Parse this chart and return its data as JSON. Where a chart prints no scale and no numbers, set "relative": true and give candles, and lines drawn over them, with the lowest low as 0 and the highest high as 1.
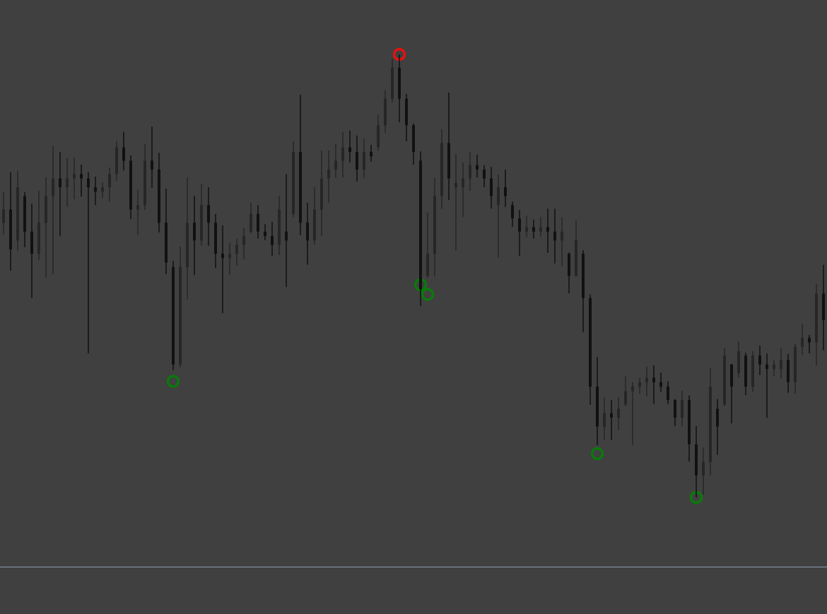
{
  "chart_data": {
    "type": "candlestick",
    "relative": true,
    "tick_labels": false,
    "marker": "circle",
    "categories": [
      null,
      null,
      null,
      null,
      null,
      null,
      null,
      null,
      null,
      null,
      null,
      null,
      null,
      null,
      null,
      null,
      null,
      null,
      null,
      null,
      null,
      null,
      null,
      null,
      null,
      null,
      null,
      null,
      null,
      null,
      null,
      null,
      null,
      null,
      null,
      null,
      null,
      null,
      null,
      null,
      null,
      null,
      null,
      null,
      null,
      null,
      null,
      null,
      null,
      null,
      null,
      null,
      null,
      null,
      null,
      null,
      null,
      null,
      null,
      null,
      null,
      null,
      null,
      null,
      null,
      null,
      null,
      null,
      null,
      null,
      null,
      null,
      null,
      null,
      null,
      null,
      null,
      null,
      null,
      null,
      null,
      null,
      null,
      null,
      null,
      null,
      null,
      null,
      null,
      null,
      null,
      null,
      null,
      null,
      null,
      null,
      null,
      null,
      null,
      null,
      null,
      null,
      null,
      null,
      null,
      null,
      null,
      null,
      null,
      null,
      null,
      null,
      null,
      null,
      null,
      null,
      null
    ],
    "ohlc": [
      [
        0.62,
        0.689,
        0.593,
        0.65
      ],
      [
        0.65,
        0.734,
        0.512,
        0.56
      ],
      [
        0.58,
        0.737,
        0.557,
        0.7
      ],
      [
        0.68,
        0.689,
        0.565,
        0.6
      ],
      [
        0.6,
        0.663,
        0.45,
        0.55
      ],
      [
        0.55,
        0.692,
        0.536,
        0.62
      ],
      [
        0.62,
        0.722,
        0.496,
        0.68
      ],
      [
        0.68,
        0.794,
        0.504,
        0.72
      ],
      [
        0.72,
        0.78,
        0.59,
        0.7
      ],
      [
        0.7,
        0.766,
        0.656,
        0.72
      ],
      [
        0.72,
        0.767,
        0.673,
        0.73
      ],
      [
        0.73,
        0.751,
        0.679,
        0.72
      ],
      [
        0.72,
        0.734,
        0.325,
        0.7
      ],
      [
        0.7,
        0.724,
        0.66,
        0.69
      ],
      [
        0.69,
        0.711,
        0.676,
        0.7
      ],
      [
        0.7,
        0.745,
        0.667,
        0.73
      ],
      [
        0.73,
        0.805,
        0.715,
        0.79
      ],
      [
        0.79,
        0.825,
        0.738,
        0.76
      ],
      [
        0.76,
        0.772,
        0.628,
        0.65
      ],
      [
        0.65,
        0.694,
        0.592,
        0.66
      ],
      [
        0.66,
        0.797,
        0.649,
        0.76
      ],
      [
        0.76,
        0.837,
        0.699,
        0.74
      ],
      [
        0.74,
        0.778,
        0.598,
        0.62
      ],
      [
        0.62,
        0.697,
        0.504,
        0.53
      ],
      [
        0.52,
        0.534,
        0.287,
        0.3
      ],
      [
        0.3,
        0.566,
        0.293,
        0.52
      ],
      [
        0.52,
        0.722,
        0.447,
        0.62
      ],
      [
        0.62,
        0.681,
        0.502,
        0.58
      ],
      [
        0.58,
        0.708,
        0.568,
        0.66
      ],
      [
        0.66,
        0.7,
        0.568,
        0.62
      ],
      [
        0.62,
        0.64,
        0.518,
        0.55
      ],
      [
        0.55,
        0.614,
        0.416,
        0.54
      ],
      [
        0.54,
        0.574,
        0.502,
        0.55
      ],
      [
        0.55,
        0.584,
        0.523,
        0.57
      ],
      [
        0.57,
        0.608,
        0.537,
        0.59
      ],
      [
        0.6,
        0.665,
        0.596,
        0.64
      ],
      [
        0.64,
        0.66,
        0.584,
        0.6
      ],
      [
        0.6,
        0.617,
        0.581,
        0.59
      ],
      [
        0.59,
        0.622,
        0.545,
        0.57
      ],
      [
        0.57,
        0.681,
        0.547,
        0.65
      ],
      [
        0.6,
        0.73,
        0.475,
        0.58
      ],
      [
        0.64,
        0.804,
        0.633,
        0.78
      ],
      [
        0.78,
        0.909,
        0.592,
        0.62
      ],
      [
        0.62,
        0.665,
        0.525,
        0.58
      ],
      [
        0.58,
        0.7,
        0.571,
        0.65
      ],
      [
        0.65,
        0.783,
        0.59,
        0.72
      ],
      [
        0.72,
        0.783,
        0.665,
        0.74
      ],
      [
        0.74,
        0.799,
        0.721,
        0.76
      ],
      [
        0.76,
        0.825,
        0.722,
        0.79
      ],
      [
        0.79,
        0.828,
        0.756,
        0.78
      ],
      [
        0.78,
        0.817,
        0.713,
        0.74
      ],
      [
        0.74,
        0.81,
        0.721,
        0.78
      ],
      [
        0.78,
        0.796,
        0.758,
        0.77
      ],
      [
        0.79,
        0.864,
        0.783,
        0.84
      ],
      [
        0.84,
        0.919,
        0.823,
        0.9
      ],
      [
        0.9,
        0.99,
        0.892,
        0.97
      ],
      [
        0.97,
        1,
        0.847,
        0.9
      ],
      [
        0.9,
        0.911,
        0.804,
        0.84
      ],
      [
        0.84,
        0.844,
        0.751,
        0.78
      ],
      [
        0.76,
        0.781,
        0.432,
        0.47
      ],
      [
        0.5,
        0.643,
        0.496,
        0.55
      ],
      [
        0.55,
        0.721,
        0.499,
        0.68
      ],
      [
        0.68,
        0.831,
        0.651,
        0.8
      ],
      [
        0.8,
        0.914,
        0.671,
        0.72
      ],
      [
        0.7,
        0.775,
        0.558,
        0.71
      ],
      [
        0.7,
        0.756,
        0.633,
        0.72
      ],
      [
        0.72,
        0.78,
        0.692,
        0.75
      ],
      [
        0.75,
        0.774,
        0.722,
        0.74
      ],
      [
        0.74,
        0.75,
        0.7,
        0.72
      ],
      [
        0.72,
        0.746,
        0.652,
        0.68
      ],
      [
        0.66,
        0.729,
        0.541,
        0.7
      ],
      [
        0.7,
        0.74,
        0.656,
        0.68
      ],
      [
        0.66,
        0.668,
        0.611,
        0.63
      ],
      [
        0.63,
        0.649,
        0.545,
        0.6
      ],
      [
        0.6,
        0.636,
        0.587,
        0.61
      ],
      [
        0.61,
        0.627,
        0.584,
        0.6
      ],
      [
        0.6,
        0.633,
        0.589,
        0.61
      ],
      [
        0.61,
        0.652,
        0.552,
        0.6
      ],
      [
        0.6,
        0.652,
        0.528,
        0.58
      ],
      [
        0.58,
        0.632,
        0.522,
        0.6
      ],
      [
        0.55,
        0.553,
        0.461,
        0.5
      ],
      [
        0.5,
        0.625,
        0.498,
        0.58
      ],
      [
        0.55,
        0.558,
        0.373,
        0.45
      ],
      [
        0.45,
        0.458,
        0.209,
        0.25
      ],
      [
        0.25,
        0.317,
        0.118,
        0.16
      ],
      [
        0.16,
        0.225,
        0.129,
        0.19
      ],
      [
        0.19,
        0.22,
        0.129,
        0.18
      ],
      [
        0.18,
        0.226,
        0.152,
        0.2
      ],
      [
        0.21,
        0.273,
        0.206,
        0.24
      ],
      [
        0.24,
        0.26,
        0.118,
        0.25
      ],
      [
        0.25,
        0.27,
        0.234,
        0.26
      ],
      [
        0.26,
        0.295,
        0.228,
        0.27
      ],
      [
        0.27,
        0.298,
        0.211,
        0.26
      ],
      [
        0.26,
        0.282,
        0.238,
        0.25
      ],
      [
        0.25,
        0.262,
        0.211,
        0.22
      ],
      [
        0.22,
        0.222,
        0.161,
        0.18
      ],
      [
        0.18,
        0.241,
        0.161,
        0.22
      ],
      [
        0.22,
        0.23,
        0.081,
        0.12
      ],
      [
        0.12,
        0.161,
        0,
        0.05
      ],
      [
        0.05,
        0.113,
        0.006,
        0.08
      ],
      [
        0.08,
        0.292,
        0.049,
        0.25
      ],
      [
        0.2,
        0.222,
        0.096,
        0.16
      ],
      [
        0.21,
        0.337,
        0.206,
        0.32
      ],
      [
        0.3,
        0.301,
        0.167,
        0.25
      ],
      [
        0.28,
        0.352,
        0.27,
        0.33
      ],
      [
        0.32,
        0.327,
        0.231,
        0.25
      ],
      [
        0.25,
        0.33,
        0.239,
        0.32
      ],
      [
        0.32,
        0.343,
        0.276,
        0.3
      ],
      [
        0.3,
        0.325,
        0.18,
        0.29
      ],
      [
        0.29,
        0.311,
        0.273,
        0.3
      ],
      [
        0.29,
        0.337,
        0.268,
        0.31
      ],
      [
        0.31,
        0.324,
        0.236,
        0.26
      ],
      [
        0.26,
        0.346,
        0.234,
        0.34
      ],
      [
        0.34,
        0.392,
        0.321,
        0.36
      ],
      [
        0.36,
        0.367,
        0.325,
        0.35
      ],
      [
        0.35,
        0.482,
        0.297,
        0.46
      ],
      [
        0.46,
        0.525,
        0.332,
        0.4
      ]
    ],
    "colors": [
      "#262626",
      "#111111",
      "#262626",
      "#111111",
      "#111111",
      "#262626",
      "#262626",
      "#262626",
      "#111111",
      "#262626",
      "#262626",
      "#111111",
      "#111111",
      "#111111",
      "#262626",
      "#262626",
      "#262626",
      "#111111",
      "#111111",
      "#262626",
      "#262626",
      "#111111",
      "#111111",
      "#111111",
      "#111111",
      "#262626",
      "#262626",
      "#111111",
      "#262626",
      "#111111",
      "#111111",
      "#111111",
      "#262626",
      "#262626",
      "#262626",
      "#262626",
      "#111111",
      "#111111",
      "#111111",
      "#262626",
      "#111111",
      "#262626",
      "#111111",
      "#111111",
      "#262626",
      "#262626",
      "#262626",
      "#262626",
      "#262626",
      "#111111",
      "#111111",
      "#262626",
      "#111111",
      "#262626",
      "#262626",
      "#262626",
      "#111111",
      "#111111",
      "#111111",
      "#111111",
      "#262626",
      "#262626",
      "#262626",
      "#111111",
      "#262626",
      "#262626",
      "#262626",
      "#111111",
      "#111111",
      "#111111",
      "#262626",
      "#111111",
      "#111111",
      "#111111",
      "#262626",
      "#111111",
      "#262626",
      "#111111",
      "#111111",
      "#262626",
      "#111111",
      "#262626",
      "#111111",
      "#111111",
      "#111111",
      "#262626",
      "#111111",
      "#262626",
      "#262626",
      "#262626",
      "#262626",
      "#262626",
      "#111111",
      "#111111",
      "#111111",
      "#111111",
      "#262626",
      "#111111",
      "#111111",
      "#262626",
      "#262626",
      "#111111",
      "#262626",
      "#111111",
      "#262626",
      "#111111",
      "#262626",
      "#111111",
      "#111111",
      "#262626",
      "#262626",
      "#111111",
      "#262626",
      "#262626",
      "#111111",
      "#262626",
      "#111111"
    ],
    "series": [
      {
        "type": "scatter",
        "color": "#e81010",
        "values": [
          null,
          null,
          null,
          null,
          null,
          null,
          null,
          null,
          null,
          null,
          null,
          null,
          null,
          null,
          null,
          null,
          null,
          null,
          null,
          null,
          null,
          null,
          null,
          null,
          null,
          null,
          null,
          null,
          null,
          null,
          null,
          null,
          null,
          null,
          null,
          null,
          null,
          null,
          null,
          null,
          null,
          null,
          null,
          null,
          null,
          null,
          null,
          null,
          null,
          null,
          null,
          null,
          null,
          null,
          null,
          null,
          1,
          null,
          null,
          null,
          null,
          null,
          null,
          null,
          null,
          null,
          null,
          null,
          null,
          null,
          null,
          null,
          null,
          null,
          null,
          null,
          null,
          null,
          null,
          null,
          null,
          null,
          null,
          null,
          null,
          null,
          null,
          null,
          null,
          null,
          null,
          null,
          null,
          null,
          null,
          null,
          null,
          null,
          null,
          null,
          null,
          null,
          null,
          null,
          null,
          null,
          null,
          null,
          null,
          null,
          null,
          null,
          null,
          null,
          null,
          null,
          null
        ]
      },
      {
        "type": "scatter",
        "color": "#0a7a0a",
        "values": [
          null,
          null,
          null,
          null,
          null,
          null,
          null,
          null,
          null,
          null,
          null,
          null,
          null,
          null,
          null,
          null,
          null,
          null,
          null,
          null,
          null,
          null,
          null,
          null,
          0.262,
          null,
          null,
          null,
          null,
          null,
          null,
          null,
          null,
          null,
          null,
          null,
          null,
          null,
          null,
          null,
          null,
          null,
          null,
          null,
          null,
          null,
          null,
          null,
          null,
          null,
          null,
          null,
          null,
          null,
          null,
          null,
          null,
          null,
          null,
          0.48,
          0.458,
          null,
          null,
          null,
          null,
          null,
          null,
          null,
          null,
          null,
          null,
          null,
          null,
          null,
          null,
          null,
          null,
          null,
          null,
          null,
          null,
          null,
          null,
          null,
          0.099,
          null,
          null,
          null,
          null,
          null,
          null,
          null,
          null,
          null,
          null,
          null,
          null,
          null,
          0,
          null,
          null,
          null,
          null,
          null,
          null,
          null,
          null,
          null,
          null,
          null,
          null,
          null,
          null,
          null,
          null,
          null,
          null
        ]
      }
    ]
  }
}
